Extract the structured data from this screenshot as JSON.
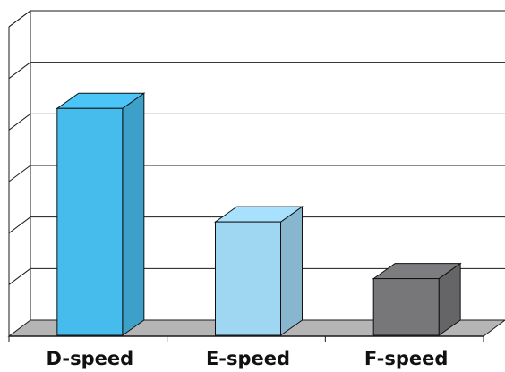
{
  "chart_data": {
    "type": "bar",
    "style": "3d",
    "categories": [
      "D-speed",
      "E-speed",
      "F-speed"
    ],
    "values": [
      4.4,
      2.2,
      1.1
    ],
    "ylim": [
      0,
      6
    ],
    "y_tick_count": 6,
    "y_tick_labels_shown": false,
    "grid": true,
    "legend": "none",
    "title": "",
    "xlabel": "",
    "ylabel": "",
    "colors": {
      "bars": [
        "#46BCEC",
        "#9FD6F2",
        "#777779"
      ],
      "floor": "#B5B5B5",
      "grid": "#1A1A1A"
    }
  }
}
